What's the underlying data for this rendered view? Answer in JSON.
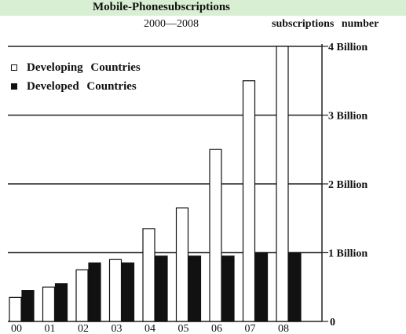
{
  "chart_data": {
    "type": "bar",
    "title": "Mobile-Phonesubscriptions",
    "subtitle": "2000—2008",
    "ylabel": "subscriptions  number",
    "categories": [
      "00",
      "01",
      "02",
      "03",
      "04",
      "05",
      "06",
      "07",
      "08"
    ],
    "series": [
      {
        "name": "Developing  Countries",
        "values": [
          0.35,
          0.5,
          0.75,
          0.9,
          1.35,
          1.65,
          2.5,
          3.5,
          4.0
        ],
        "fill": "#ffffff"
      },
      {
        "name": "Developed  Countries",
        "values": [
          0.45,
          0.55,
          0.85,
          0.85,
          0.95,
          0.95,
          0.95,
          1.0,
          1.0
        ],
        "fill": "#111111"
      }
    ],
    "yticks": [
      {
        "value": 0,
        "label": "0"
      },
      {
        "value": 1,
        "label": "1  Billion"
      },
      {
        "value": 2,
        "label": "2  Billion"
      },
      {
        "value": 3,
        "label": "3  Billion"
      },
      {
        "value": 4,
        "label": "4  Billion"
      }
    ],
    "ylim": [
      0,
      4
    ],
    "grid": true,
    "legend_position": "top-left"
  }
}
